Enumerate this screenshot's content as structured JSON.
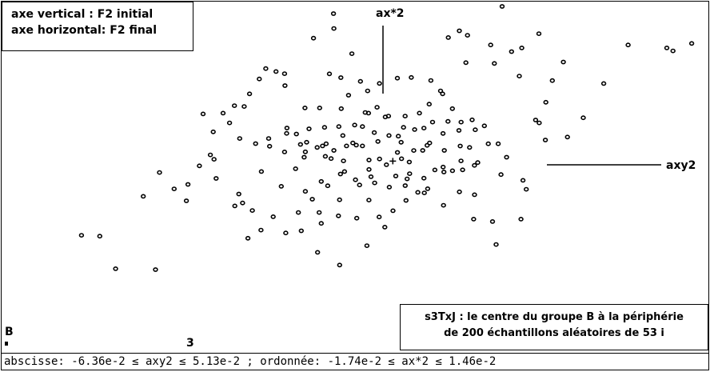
{
  "legend": {
    "line1": "axe vertical : F2 initial",
    "line2": "axe horizontal: F2 final"
  },
  "caption": {
    "line1": "s3TxJ  : le centre du groupe B à la périphérie",
    "line2": "de 200 échantillons aléatoires de 53 i"
  },
  "status_bar": "abscisse: -6.36e-2 ≤ axy2 ≤  5.13e-2 ; ordonnée: -1.74e-2 ≤ ax*2 ≤  1.46e-2",
  "tags": {
    "group": "B",
    "number": "3"
  },
  "chart_data": {
    "type": "scatter",
    "title": "",
    "xlabel": "axy2",
    "ylabel": "ax*2",
    "xlim": [
      -0.0636,
      0.0513
    ],
    "ylim": [
      -0.0174,
      0.0146
    ],
    "grid": false,
    "axes_labels": [
      {
        "text": "ax*2",
        "axis": "vertical"
      },
      {
        "text": "axy2",
        "axis": "horizontal"
      }
    ],
    "points": [
      [
        0.01776,
        0.01416
      ],
      [
        -0.05062,
        -0.00679
      ],
      [
        -0.04764,
        -0.00687
      ],
      [
        -0.04507,
        -0.00985
      ],
      [
        -0.03858,
        -0.00993
      ],
      [
        -0.04057,
        -0.00322
      ],
      [
        -0.03793,
        -0.00104
      ],
      [
        -0.03555,
        -0.00254
      ],
      [
        -0.03356,
        -0.00363
      ],
      [
        -0.0333,
        -0.00213
      ],
      [
        -0.03145,
        -0.00043
      ],
      [
        -0.02966,
        0.00057
      ],
      [
        -0.02906,
        0.00017
      ],
      [
        -0.02873,
        -0.00158
      ],
      [
        -0.02569,
        -0.0041
      ],
      [
        -0.02503,
        -0.00301
      ],
      [
        -0.02442,
        -0.00383
      ],
      [
        -0.02284,
        -0.00452
      ],
      [
        -0.0223,
        0.0016
      ],
      [
        -0.02489,
        0.00207
      ],
      [
        -0.02654,
        0.0035
      ],
      [
        -0.02919,
        0.00268
      ],
      [
        -0.03085,
        0.00432
      ],
      [
        -0.0276,
        0.00439
      ],
      [
        -0.02575,
        0.00507
      ],
      [
        -0.02416,
        0.005
      ],
      [
        -0.0233,
        0.00616
      ],
      [
        -0.02171,
        0.00752
      ],
      [
        -0.02065,
        0.00847
      ],
      [
        -0.01899,
        0.0082
      ],
      [
        -0.0176,
        0.008
      ],
      [
        -0.01753,
        0.00691
      ],
      [
        -0.01429,
        0.00487
      ],
      [
        -0.0119,
        0.00487
      ],
      [
        -0.00839,
        0.0048
      ],
      [
        -0.0072,
        0.00603
      ],
      [
        -0.00409,
        0.00643
      ],
      [
        -0.00217,
        0.00711
      ],
      [
        0.00074,
        0.00759
      ],
      [
        0.003,
        0.00766
      ],
      [
        0.00618,
        0.00738
      ],
      [
        0.00809,
        0.00616
      ],
      [
        0.00968,
        0.0048
      ],
      [
        0.00776,
        0.00643
      ],
      [
        0.00591,
        0.00521
      ],
      [
        0.00432,
        0.00439
      ],
      [
        0.002,
        0.00412
      ],
      [
        -0.00071,
        0.00412
      ],
      [
        -0.00395,
        0.00439
      ],
      [
        -0.0062,
        0.0033
      ],
      [
        -0.00878,
        0.00316
      ],
      [
        -0.0111,
        0.00309
      ],
      [
        -0.01362,
        0.00296
      ],
      [
        -0.01143,
        0.00139
      ],
      [
        -0.01004,
        0.00023
      ],
      [
        -0.00852,
        -0.00118
      ],
      [
        -0.01164,
        -0.00186
      ],
      [
        -0.01422,
        -0.00277
      ],
      [
        -0.01581,
        -0.0007
      ],
      [
        -0.01422,
        0.00085
      ],
      [
        -0.0176,
        0.00084
      ],
      [
        -0.02003,
        0.00136
      ],
      [
        -0.01726,
        0.00254
      ],
      [
        -0.01502,
        0.00153
      ],
      [
        -0.0123,
        0.00125
      ],
      [
        -0.00958,
        0.00098
      ],
      [
        -0.00812,
        0.00234
      ],
      [
        -0.00594,
        0.00146
      ],
      [
        -0.00388,
        0.0001
      ],
      [
        -0.00295,
        -0.00199
      ],
      [
        -0.00389,
        -0.00357
      ],
      [
        -0.00587,
        -0.00522
      ],
      [
        -0.00884,
        -0.00501
      ],
      [
        -0.01163,
        -0.0057
      ],
      [
        -0.01488,
        -0.00638
      ],
      [
        -0.0174,
        -0.00658
      ],
      [
        -0.01945,
        -0.00509
      ],
      [
        -0.02144,
        -0.00631
      ],
      [
        -0.02356,
        -0.00706
      ],
      [
        -0.01223,
        -0.00835
      ],
      [
        -0.00865,
        -0.00951
      ],
      [
        -0.00421,
        -0.00774
      ],
      [
        -0.0013,
        -0.00604
      ],
      [
        2e-05,
        -0.00454
      ],
      [
        0.00214,
        -0.0036
      ],
      [
        0.00512,
        -0.00291
      ],
      [
        0.0083,
        -0.001
      ],
      [
        0.01135,
        -0.0008
      ],
      [
        0.01327,
        -0.00039
      ],
      [
        0.01552,
        0.00159
      ],
      [
        0.0134,
        0.00287
      ],
      [
        0.01075,
        0.00281
      ],
      [
        0.00816,
        0.00253
      ],
      [
        0.00558,
        0.00144
      ],
      [
        0.0034,
        0.00097
      ],
      [
        0.00141,
        0.00022
      ],
      [
        -0.00104,
        -0.00033
      ],
      [
        0.00273,
        -0.00115
      ],
      [
        0.00406,
        -0.00286
      ],
      [
        0.01314,
        -0.00531
      ],
      [
        0.01679,
        -0.00763
      ],
      [
        0.02083,
        -0.00531
      ],
      [
        0.02169,
        -0.00258
      ],
      [
        0.02116,
        -0.00176
      ],
      [
        0.0185,
        0.00036
      ],
      [
        0.02321,
        0.00376
      ],
      [
        0.02487,
        0.00539
      ],
      [
        0.02593,
        0.00737
      ],
      [
        0.02056,
        0.00778
      ],
      [
        0.01651,
        0.00894
      ],
      [
        0.01188,
        0.00901
      ],
      [
        0.00902,
        0.01131
      ],
      [
        0.01214,
        0.01152
      ],
      [
        0.01591,
        0.01063
      ],
      [
        0.0193,
        0.01002
      ],
      [
        0.02096,
        0.01036
      ],
      [
        0.02374,
        0.01166
      ],
      [
        0.01081,
        0.01193
      ],
      [
        0.02772,
        0.00907
      ],
      [
        0.0248,
        0.00193
      ],
      [
        0.02838,
        0.0022
      ],
      [
        0.03096,
        0.00397
      ],
      [
        0.03428,
        0.0071
      ],
      [
        0.03825,
        0.01063
      ],
      [
        0.04454,
        0.01036
      ],
      [
        0.04554,
        0.01009
      ],
      [
        0.04858,
        0.01077
      ],
      [
        -0.00964,
        0.0135
      ],
      [
        -0.00958,
        0.01214
      ],
      [
        -0.01289,
        0.01125
      ],
      [
        -0.00666,
        0.00983
      ],
      [
        -0.01031,
        0.00799
      ],
      [
        -0.00845,
        0.00764
      ],
      [
        -0.00527,
        0.0073
      ],
      [
        -0.00448,
        0.00445
      ],
      [
        -0.00256,
        0.00493
      ],
      [
        -0.00123,
        0.00404
      ],
      [
        0.00174,
        0.00309
      ],
      [
        0.00506,
        0.00302
      ],
      [
        0.00598,
        0.00166
      ],
      [
        0.00837,
        0.00098
      ],
      [
        0.00684,
        -0.00081
      ],
      [
        0.00969,
        -0.00088
      ],
      [
        0.01096,
        0.00138
      ],
      [
        0.00486,
        0.00098
      ],
      [
        0.00135,
        0.00173
      ],
      [
        -0.00063,
        0.00234
      ],
      [
        -0.00302,
        0.00261
      ],
      [
        -0.00494,
        0.00316
      ],
      [
        -0.0065,
        0.00166
      ],
      [
        -0.00802,
        2e-05
      ],
      [
        -0.00607,
        -0.00171
      ],
      [
        -0.01058,
        -0.00226
      ],
      [
        -0.01309,
        -0.00349
      ],
      [
        -0.01535,
        -0.0047
      ],
      [
        -0.01197,
        -0.0047
      ],
      [
        -0.00866,
        -0.00354
      ],
      [
        -0.00541,
        -0.00218
      ],
      [
        -0.00388,
        -0.00076
      ],
      [
        -0.00216,
        0.0002
      ],
      [
        0.00075,
        0.0008
      ],
      [
        0.00267,
        -8e-05
      ],
      [
        0.00566,
        -0.00253
      ],
      [
        0.00824,
        -0.00404
      ],
      [
        0.01082,
        -0.00281
      ],
      [
        0.01328,
        -0.00308
      ],
      [
        0.0162,
        -0.00553
      ],
      [
        0.01759,
        -0.00123
      ],
      [
        0.01713,
        0.00159
      ],
      [
        0.01488,
        0.00323
      ],
      [
        0.01289,
        0.00378
      ],
      [
        0.0111,
        0.00357
      ],
      [
        0.00897,
        0.00364
      ],
      [
        0.00646,
        0.00357
      ],
      [
        0.00354,
        0.00289
      ],
      [
        0.00089,
        0.00228
      ],
      [
        -0.00242,
        0.0018
      ],
      [
        -0.00494,
        0.00139
      ],
      [
        -0.00753,
        0.00139
      ],
      [
        -0.01084,
        0.00159
      ],
      [
        -0.01402,
        0.00173
      ],
      [
        -0.01568,
        0.00248
      ],
      [
        -0.01721,
        0.00303
      ],
      [
        -0.02019,
        0.00207
      ],
      [
        -0.01442,
        0.00036
      ],
      [
        -0.01097,
        0.00044
      ],
      [
        -0.00785,
        -0.00095
      ],
      [
        -0.00355,
        -0.00143
      ],
      [
        -0.00057,
        -0.00238
      ],
      [
        0.00201,
        -0.00224
      ],
      [
        0.00506,
        -0.00156
      ],
      [
        0.00817,
        -0.00054
      ],
      [
        0.01109,
        2e-05
      ],
      [
        0.01248,
        0.00125
      ],
      [
        0.0138,
        -0.00013
      ],
      [
        -0.01813,
        -0.00231
      ],
      [
        -0.02137,
        -0.00095
      ],
      [
        -0.00223,
        -0.00511
      ],
      [
        0.00233,
        -0.00163
      ],
      [
        0.0238,
        0.0035
      ],
      [
        0.00048,
        -0.00136
      ]
    ],
    "center_marker": [
      0.0,
      0.0
    ],
    "annotations": [
      {
        "text": "B"
      },
      {
        "text": "3"
      }
    ]
  }
}
